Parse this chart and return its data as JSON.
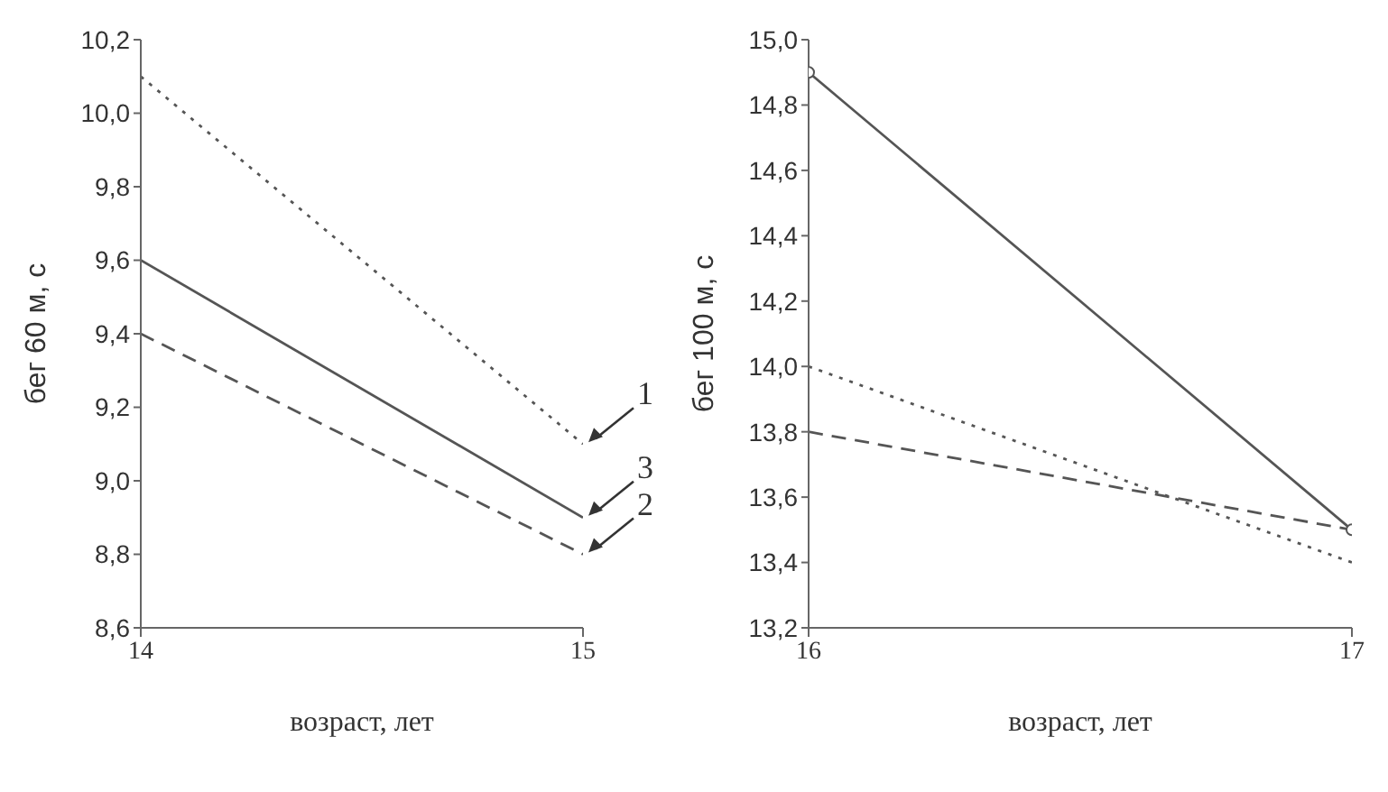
{
  "chart_data": [
    {
      "type": "line",
      "xlabel": "возраст, лет",
      "ylabel": "бег 60 м, с",
      "x": [
        14,
        15
      ],
      "series": [
        {
          "name": "1",
          "color": "#555555",
          "values": [
            10.1,
            9.1
          ],
          "line_style": "dotted",
          "marker": "none"
        },
        {
          "name": "3",
          "color": "#555555",
          "values": [
            9.6,
            8.9
          ],
          "line_style": "solid",
          "marker": "none"
        },
        {
          "name": "2",
          "color": "#555555",
          "values": [
            9.4,
            8.8
          ],
          "line_style": "dashed",
          "marker": "none"
        }
      ],
      "xlim": [
        14,
        15
      ],
      "xticks": [
        14,
        15
      ],
      "ylim": [
        8.6,
        10.2
      ],
      "yticks": [
        {
          "value": 8.6,
          "label": "8,6"
        },
        {
          "value": 8.8,
          "label": "8,8"
        },
        {
          "value": 9.0,
          "label": "9,0"
        },
        {
          "value": 9.2,
          "label": "9,2"
        },
        {
          "value": 9.4,
          "label": "9,4"
        },
        {
          "value": 9.6,
          "label": "9,6"
        },
        {
          "value": 9.8,
          "label": "9,8"
        },
        {
          "value": 10.0,
          "label": "10,0"
        },
        {
          "value": 10.2,
          "label": "10,2"
        }
      ],
      "grid": false,
      "legend": false
    },
    {
      "type": "line",
      "xlabel": "возраст, лет",
      "ylabel": "бег 100 м, с",
      "x": [
        16,
        17
      ],
      "series": [
        {
          "color": "#555555",
          "values": [
            14.9,
            13.5
          ],
          "line_style": "solid",
          "marker": "circle"
        },
        {
          "color": "#555555",
          "values": [
            14.0,
            13.4
          ],
          "line_style": "dotted",
          "marker": "none"
        },
        {
          "color": "#555555",
          "values": [
            13.8,
            13.5
          ],
          "line_style": "dashed",
          "marker": "none"
        }
      ],
      "xlim": [
        16,
        17
      ],
      "xticks": [
        16,
        17
      ],
      "ylim": [
        13.2,
        15.0
      ],
      "yticks": [
        {
          "value": 13.2,
          "label": "13,2"
        },
        {
          "value": 13.4,
          "label": "13,4"
        },
        {
          "value": 13.6,
          "label": "13,6"
        },
        {
          "value": 13.8,
          "label": "13,8"
        },
        {
          "value": 14.0,
          "label": "14,0"
        },
        {
          "value": 14.2,
          "label": "14,2"
        },
        {
          "value": 14.4,
          "label": "14,4"
        },
        {
          "value": 14.6,
          "label": "14,6"
        },
        {
          "value": 14.8,
          "label": "14,8"
        },
        {
          "value": 15.0,
          "label": "15,0"
        }
      ],
      "grid": false,
      "legend": false
    }
  ]
}
